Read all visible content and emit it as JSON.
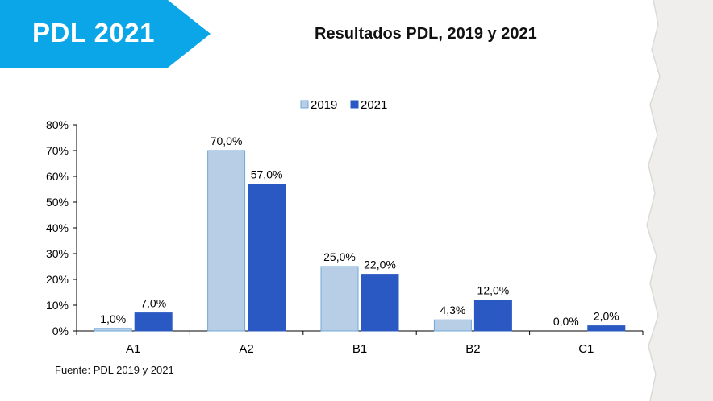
{
  "badge": {
    "label": "PDL 2021",
    "color": "#0aa6e8"
  },
  "slide_title": "Resultados PDL, 2019 y 2021",
  "source_note": "Fuente: PDL 2019 y 2021",
  "chart_data": {
    "type": "bar",
    "title": "",
    "xlabel": "",
    "ylabel": "",
    "categories": [
      "A1",
      "A2",
      "B1",
      "B2",
      "C1"
    ],
    "series": [
      {
        "name": "2019",
        "values": [
          1.0,
          70.0,
          25.0,
          4.3,
          0.0
        ],
        "labels": [
          "1,0%",
          "70,0%",
          "25,0%",
          "4,3%",
          "0,0%"
        ],
        "color": "#b8cee6",
        "stroke": "#6fa9d8"
      },
      {
        "name": "2021",
        "values": [
          7.0,
          57.0,
          22.0,
          12.0,
          2.0
        ],
        "labels": [
          "7,0%",
          "57,0%",
          "22,0%",
          "12,0%",
          "2,0%"
        ],
        "color": "#2b59c3",
        "stroke": "#2b59c3"
      }
    ],
    "ylim": [
      0,
      80
    ],
    "yticks": [
      "0%",
      "10%",
      "20%",
      "30%",
      "40%",
      "50%",
      "60%",
      "70%",
      "80%"
    ],
    "grid": false,
    "legend": "top-center"
  }
}
